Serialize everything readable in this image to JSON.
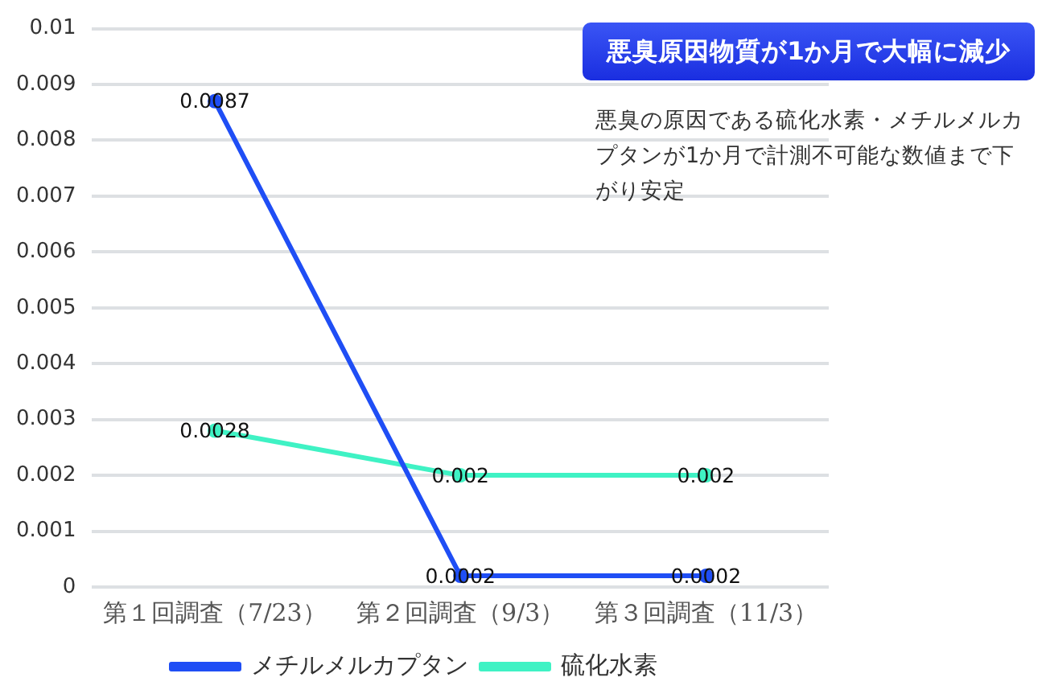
{
  "chart_data": {
    "type": "line",
    "title": "悪臭原因物質が1か月で大幅に減少",
    "subtitle": "悪臭の原因である硫化水素・メチルメルカプタンが1か月で計測不可能な数値まで下がり安定",
    "categories": [
      "第１回調査（7/23）",
      "第２回調査（9/3）",
      "第３回調査（11/3）"
    ],
    "series": [
      {
        "name": "メチルメルカプタン",
        "color": "#1f4ef5",
        "values": [
          0.0087,
          0.0002,
          0.0002
        ]
      },
      {
        "name": "硫化水素",
        "color": "#3ff2c4",
        "values": [
          0.0028,
          0.002,
          0.002
        ]
      }
    ],
    "ylim": [
      0,
      0.01
    ],
    "yticks": [
      0,
      0.001,
      0.002,
      0.003,
      0.004,
      0.005,
      0.006,
      0.007,
      0.008,
      0.009,
      0.01
    ],
    "grid": "y",
    "legend": "bottom",
    "marker": "circle",
    "line_style": "solid",
    "data_labels": true
  }
}
